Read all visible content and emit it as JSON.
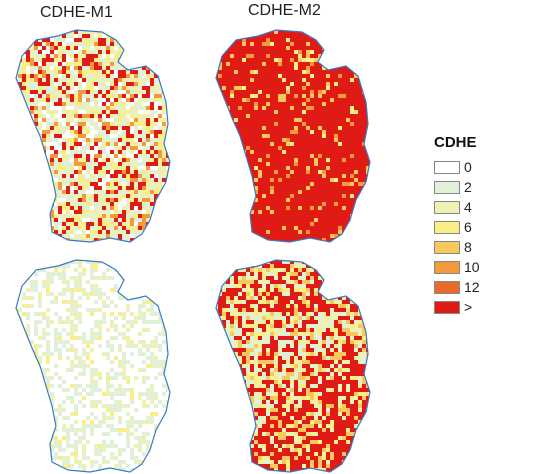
{
  "titles": {
    "left": "CDHE-M1",
    "right": "CDHE-M2"
  },
  "legend": {
    "title": "CDHE",
    "items": [
      {
        "label": "0",
        "color": "#ffffff"
      },
      {
        "label": "2",
        "color": "#e3f0d8"
      },
      {
        "label": "4",
        "color": "#edf2b4"
      },
      {
        "label": "6",
        "color": "#faee84"
      },
      {
        "label": "8",
        "color": "#f8c85c"
      },
      {
        "label": "10",
        "color": "#f29a3c"
      },
      {
        "label": "12",
        "color": "#ea6a2a"
      },
      {
        "label": ">",
        "color": "#e01a14"
      }
    ]
  },
  "boundary_color": "#3a78c8",
  "maps": [
    {
      "id": "top-left",
      "intensity_level": "moderate",
      "dominant_classes": [
        "2",
        "4",
        "6",
        ">"
      ]
    },
    {
      "id": "top-right",
      "intensity_level": "very-high",
      "dominant_classes": [
        ">",
        "8",
        "10"
      ]
    },
    {
      "id": "bottom-left",
      "intensity_level": "very-low",
      "dominant_classes": [
        "0",
        "2",
        "4"
      ]
    },
    {
      "id": "bottom-right",
      "intensity_level": "high",
      "dominant_classes": [
        "6",
        "8",
        ">"
      ]
    }
  ]
}
